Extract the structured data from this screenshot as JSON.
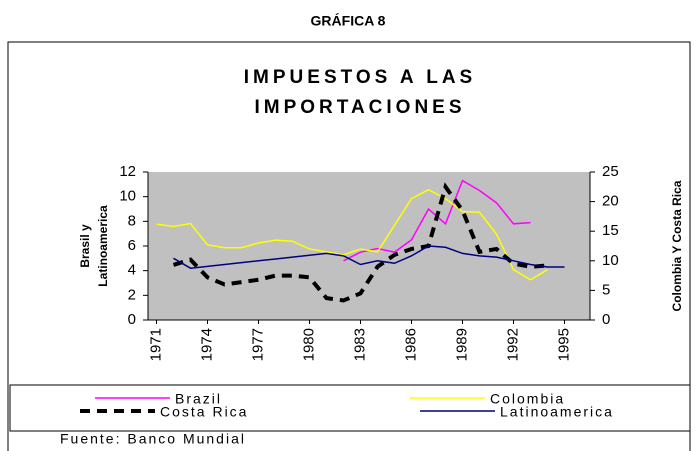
{
  "chart_data": {
    "type": "line",
    "figure_label": "GRÁFICA 8",
    "title": [
      "IMPUESTOS A LAS",
      "IMPORTACIONES"
    ],
    "ylabel": [
      "Brasil y",
      "Latinoamerica"
    ],
    "y2label": "Colombia Y Costa Rica",
    "source": "Fuente: Banco Mundial",
    "x": [
      1971,
      1972,
      1973,
      1974,
      1975,
      1976,
      1977,
      1978,
      1979,
      1980,
      1981,
      1982,
      1983,
      1984,
      1985,
      1986,
      1987,
      1988,
      1989,
      1990,
      1991,
      1992,
      1993,
      1994,
      1995
    ],
    "xlim": [
      1970.5,
      1996.5
    ],
    "xticks": [
      1971,
      1974,
      1977,
      1980,
      1983,
      1986,
      1989,
      1992,
      1995
    ],
    "ylim": [
      0,
      12
    ],
    "yticks": [
      0,
      2,
      4,
      6,
      8,
      10,
      12
    ],
    "y2lim": [
      0,
      25
    ],
    "y2ticks": [
      0,
      5,
      10,
      15,
      20,
      25
    ],
    "background": "#c0c0c0",
    "series": [
      {
        "name": "Brazil",
        "color": "#ff00ff",
        "axis": "y",
        "dashed": false,
        "values": [
          null,
          null,
          null,
          null,
          null,
          null,
          null,
          null,
          null,
          null,
          null,
          4.8,
          5.5,
          5.8,
          5.5,
          6.5,
          9.0,
          7.8,
          11.3,
          10.5,
          9.5,
          7.8,
          7.9,
          null,
          null
        ]
      },
      {
        "name": "Colombia",
        "color": "#ffff00",
        "axis": "y2",
        "dashed": false,
        "values": [
          16.2,
          15.8,
          16.3,
          12.7,
          12.2,
          12.2,
          13.0,
          13.5,
          13.3,
          12.0,
          11.5,
          11.0,
          12.0,
          11.5,
          16.0,
          20.5,
          22.0,
          20.5,
          18.3,
          18.2,
          14.5,
          8.5,
          6.8,
          8.5,
          null
        ]
      },
      {
        "name": "Costa Rica",
        "color": "#000000",
        "axis": "y2",
        "dashed": true,
        "values": [
          null,
          9.3,
          10.2,
          7.2,
          6.0,
          6.4,
          6.8,
          7.5,
          7.5,
          7.2,
          3.7,
          3.3,
          4.5,
          9.0,
          11.0,
          12.0,
          12.5,
          22.5,
          18.5,
          11.5,
          12.0,
          9.5,
          9.0,
          9.2,
          null
        ]
      },
      {
        "name": "Latinoamerica",
        "color": "#000080",
        "axis": "y",
        "dashed": false,
        "values": [
          null,
          5.0,
          4.2,
          4.35,
          4.5,
          4.65,
          4.8,
          4.95,
          5.1,
          5.25,
          5.4,
          5.2,
          4.5,
          4.8,
          4.6,
          5.2,
          6.0,
          5.9,
          5.4,
          5.2,
          5.1,
          4.8,
          4.5,
          4.3,
          4.3
        ]
      }
    ]
  }
}
